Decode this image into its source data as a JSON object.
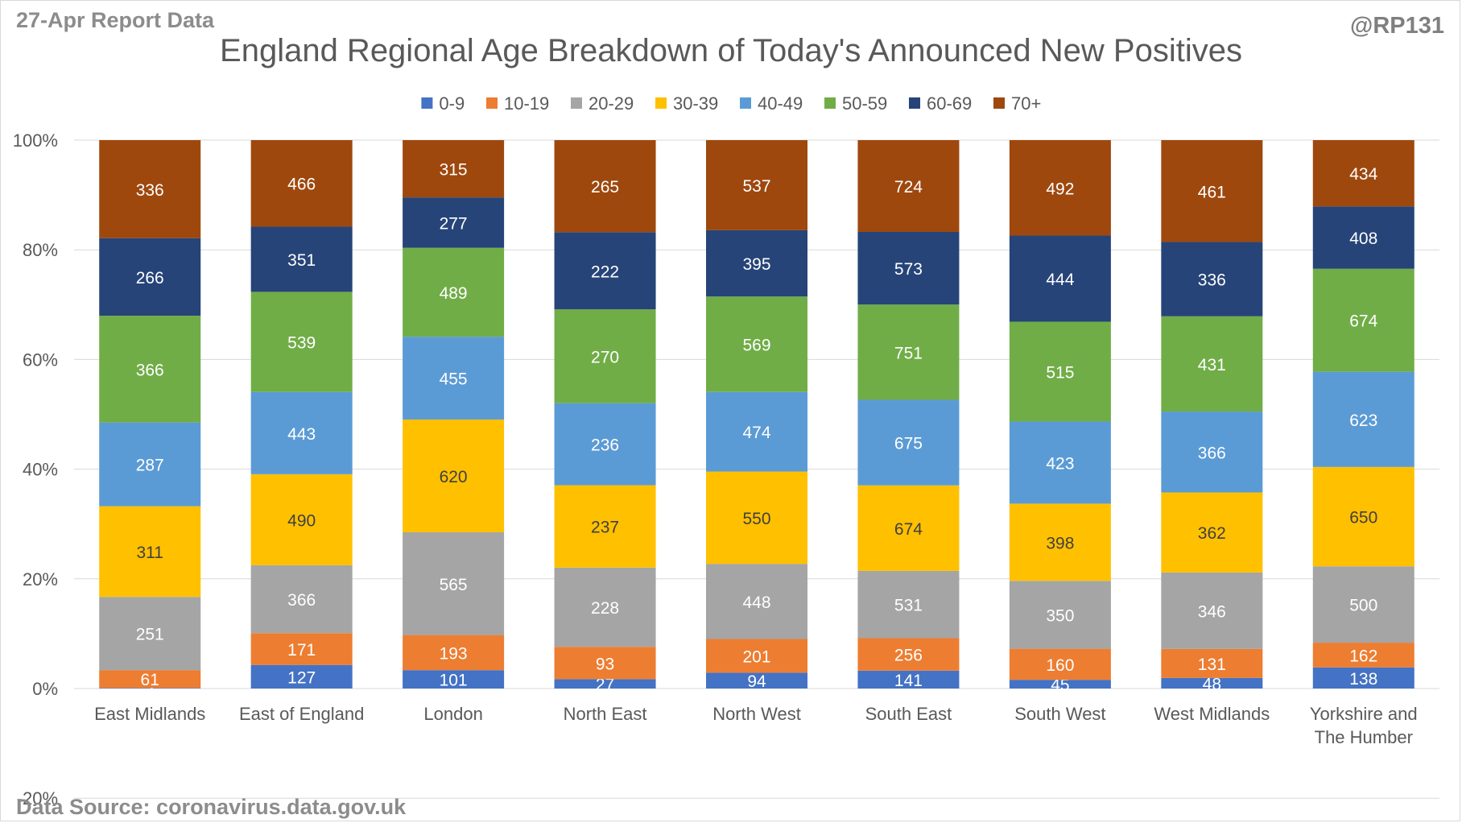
{
  "header": {
    "report_date": "27-Apr Report Data",
    "handle": "@RP131"
  },
  "footer": {
    "source": "Data Source: coronavirus.data.gov.uk"
  },
  "chart_data": {
    "type": "bar",
    "stacking": "percent",
    "title": "England Regional Age Breakdown of Today's Announced New Positives",
    "xlabel": "",
    "ylabel": "",
    "ylim": [
      -20,
      100
    ],
    "yticks": [
      -20,
      0,
      20,
      40,
      60,
      80,
      100
    ],
    "ytick_labels": [
      "-20%",
      "0%",
      "20%",
      "40%",
      "60%",
      "80%",
      "100%"
    ],
    "grid": true,
    "legend_position": "top",
    "categories": [
      "East Midlands",
      "East of England",
      "London",
      "North East",
      "North West",
      "South East",
      "South West",
      "West Midlands",
      "Yorkshire and The Humber"
    ],
    "series": [
      {
        "name": "0-9",
        "color": "#4472c4",
        "label_color": "#ffffff",
        "values": [
          2,
          127,
          101,
          27,
          94,
          141,
          45,
          48,
          138
        ]
      },
      {
        "name": "10-19",
        "color": "#ed7d31",
        "label_color": "#ffffff",
        "values": [
          61,
          171,
          193,
          93,
          201,
          256,
          160,
          131,
          162
        ]
      },
      {
        "name": "20-29",
        "color": "#a5a5a5",
        "label_color": "#ffffff",
        "values": [
          251,
          366,
          565,
          228,
          448,
          531,
          350,
          346,
          500
        ]
      },
      {
        "name": "30-39",
        "color": "#ffc000",
        "label_color": "#404040",
        "values": [
          311,
          490,
          620,
          237,
          550,
          674,
          398,
          362,
          650
        ]
      },
      {
        "name": "40-49",
        "color": "#5b9bd5",
        "label_color": "#ffffff",
        "values": [
          287,
          443,
          455,
          236,
          474,
          675,
          423,
          366,
          623
        ]
      },
      {
        "name": "50-59",
        "color": "#70ad47",
        "label_color": "#ffffff",
        "values": [
          366,
          539,
          489,
          270,
          569,
          751,
          515,
          431,
          674
        ]
      },
      {
        "name": "60-69",
        "color": "#264478",
        "label_color": "#ffffff",
        "values": [
          266,
          351,
          277,
          222,
          395,
          573,
          444,
          336,
          408
        ]
      },
      {
        "name": "70+",
        "color": "#9e480e",
        "label_color": "#ffffff",
        "values": [
          336,
          466,
          315,
          265,
          537,
          724,
          492,
          461,
          434
        ]
      }
    ]
  }
}
